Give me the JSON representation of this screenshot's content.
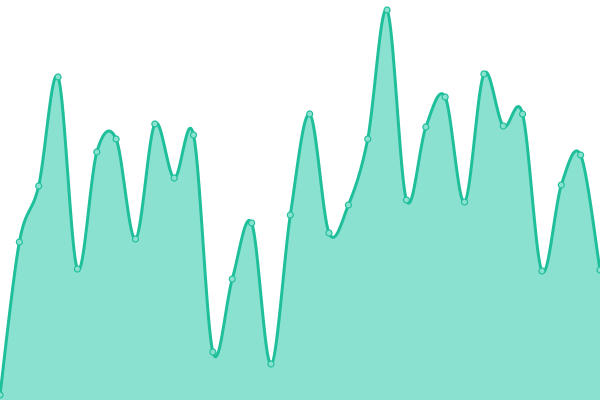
{
  "chart_data": {
    "type": "area",
    "title": "",
    "xlabel": "",
    "ylabel": "",
    "grid": false,
    "axes_visible": false,
    "smooth": true,
    "ylim": [
      0,
      400
    ],
    "x": [
      0,
      1,
      2,
      3,
      4,
      5,
      6,
      7,
      8,
      9,
      10,
      11,
      12,
      13,
      14,
      15,
      16,
      17,
      18,
      19,
      20,
      21,
      22,
      23,
      24,
      25,
      26,
      27,
      28,
      29,
      30,
      31
    ],
    "series": [
      {
        "values": [
          5,
          158,
          214,
          323,
          131,
          248,
          261,
          161,
          276,
          222,
          265,
          48,
          121,
          177,
          36,
          185,
          286,
          167,
          195,
          261,
          390,
          200,
          273,
          303,
          198,
          326,
          274,
          286,
          129,
          215,
          245,
          130
        ]
      }
    ],
    "colors": {
      "fill": "#8ae1cf",
      "line": "#1fbf9b",
      "point_fill": "#8ae1cf"
    }
  }
}
